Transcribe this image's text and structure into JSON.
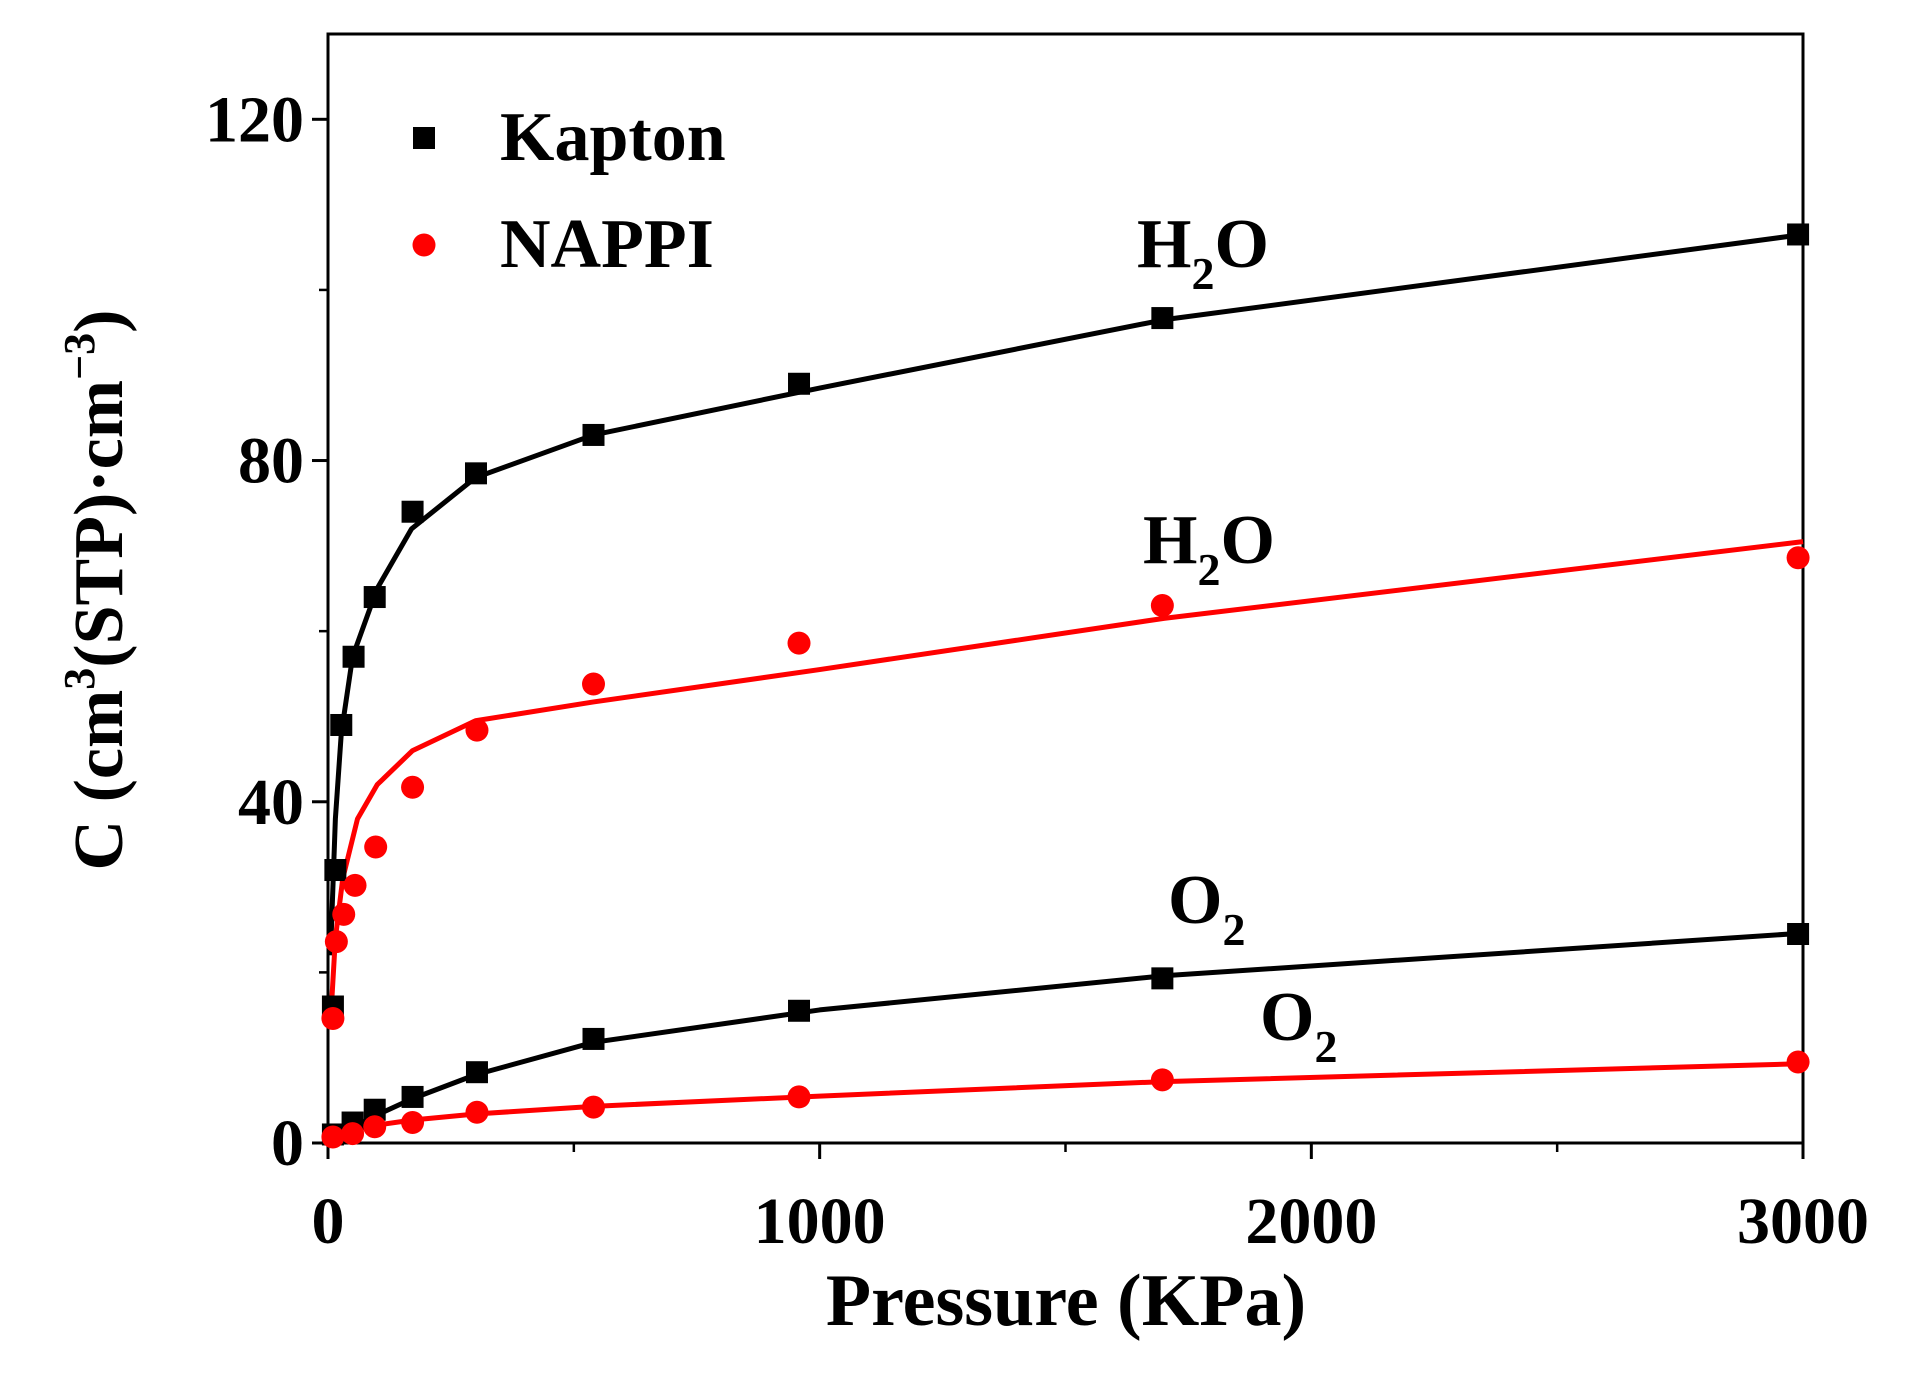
{
  "chart_data": {
    "type": "scatter",
    "xlabel": "Pressure (KPa)",
    "ylabel": [
      "C (cm",
      "3",
      "(STP)·cm",
      "−3",
      ")"
    ],
    "xlim": [
      0,
      3000
    ],
    "ylim": [
      0,
      130
    ],
    "xticks": [
      0,
      1000,
      2000,
      3000
    ],
    "yticks": [
      0,
      40,
      80,
      120
    ],
    "xminor": [
      500,
      1500,
      2500
    ],
    "yminor": [
      20,
      60,
      100
    ],
    "series": [
      {
        "name": "Kapton",
        "color": "#000000",
        "marker": "square",
        "label": [
          "H",
          "2",
          "O"
        ],
        "x": [
          10,
          15,
          27,
          52,
          95,
          172,
          301,
          540,
          958,
          1697,
          2990
        ],
        "values": [
          16,
          32,
          49,
          57,
          64,
          74,
          78.5,
          83,
          89,
          96.7,
          106.5
        ],
        "fit": {
          "x": [
            5,
            15,
            27,
            50,
            100,
            170,
            300,
            540,
            1000,
            1700,
            3000
          ],
          "values": [
            22,
            38,
            48,
            57,
            65,
            72,
            78,
            83,
            88.5,
            96.5,
            106.5
          ]
        }
      },
      {
        "name": "NAPPI",
        "color": "#ff0000",
        "marker": "circle",
        "label": [
          "H",
          "2",
          "O"
        ],
        "x": [
          10,
          17,
          32,
          55,
          97,
          172,
          303,
          540,
          958,
          1697,
          2990
        ],
        "values": [
          14.6,
          23.6,
          26.8,
          30.2,
          34.7,
          41.7,
          48.4,
          53.8,
          58.6,
          63,
          68.6
        ],
        "fit": {
          "x": [
            5,
            15,
            30,
            60,
            100,
            172,
            300,
            540,
            1000,
            1700,
            3000
          ],
          "values": [
            14,
            24,
            31,
            38,
            42,
            46,
            49.5,
            51.7,
            55.5,
            61.5,
            70.5
          ]
        }
      },
      {
        "name": "Kapton",
        "color": "#000000",
        "marker": "square",
        "label": [
          "O",
          "2"
        ],
        "x": [
          10,
          50,
          95,
          172,
          303,
          540,
          958,
          1697,
          2990
        ],
        "values": [
          1,
          2.4,
          3.9,
          5.4,
          8.3,
          12.2,
          15.5,
          19.3,
          24.5
        ],
        "fit": {
          "x": [
            0,
            50,
            100,
            172,
            300,
            540,
            1000,
            1700,
            3000
          ],
          "values": [
            0,
            1.8,
            3.3,
            5.2,
            8,
            11.8,
            15.6,
            19.6,
            24.6
          ]
        }
      },
      {
        "name": "NAPPI",
        "color": "#ff0000",
        "marker": "circle",
        "label": [
          "O",
          "2"
        ],
        "x": [
          10,
          50,
          95,
          172,
          303,
          540,
          958,
          1697,
          2990
        ],
        "values": [
          0.7,
          1.1,
          1.9,
          2.4,
          3.6,
          4.2,
          5.4,
          7.4,
          9.5
        ],
        "fit": {
          "x": [
            5,
            50,
            100,
            172,
            300,
            540,
            1000,
            1700,
            3000
          ],
          "values": [
            0,
            1.5,
            2.1,
            2.7,
            3.4,
            4.3,
            5.5,
            7.2,
            9.3
          ]
        }
      }
    ]
  }
}
